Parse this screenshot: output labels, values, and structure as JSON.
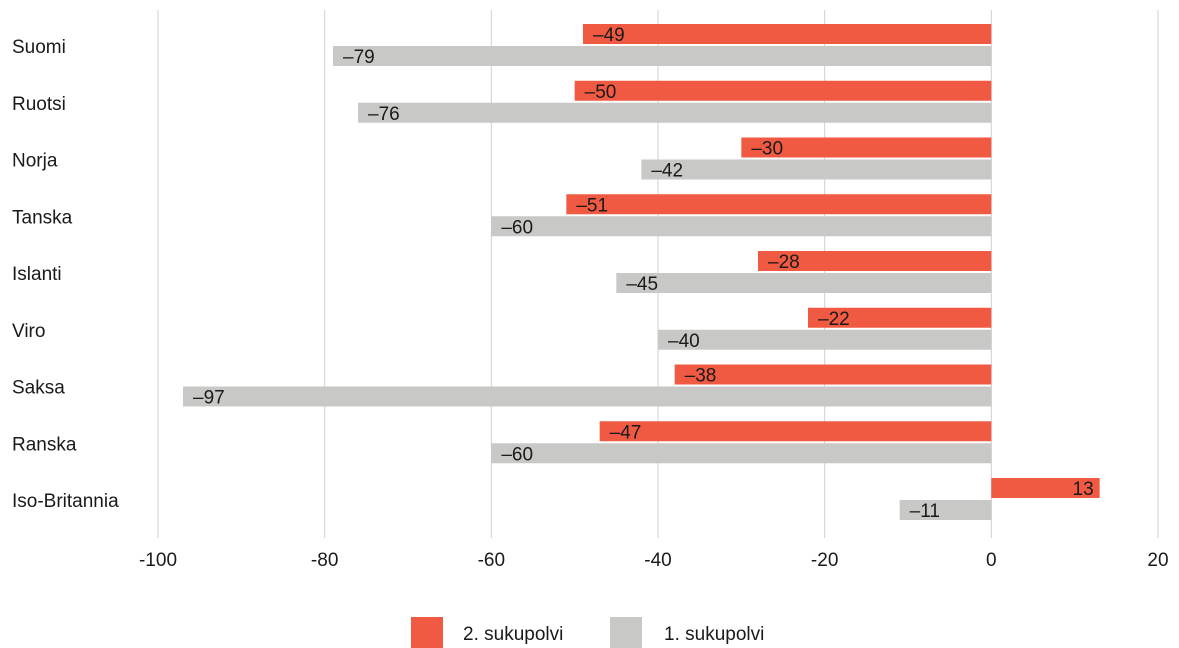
{
  "chart_data": {
    "type": "bar",
    "orientation": "horizontal",
    "categories": [
      "Suomi",
      "Ruotsi",
      "Norja",
      "Tanska",
      "Islanti",
      "Viro",
      "Saksa",
      "Ranska",
      "Iso-Britannia"
    ],
    "series": [
      {
        "name": "2. sukupolvi",
        "color": "#f15a42",
        "values": [
          -49,
          -50,
          -30,
          -51,
          -28,
          -22,
          -38,
          -47,
          13
        ],
        "labels": [
          "–49",
          "–50",
          "–30",
          "–51",
          "–28",
          "–22",
          "–38",
          "–47",
          "13"
        ]
      },
      {
        "name": "1. sukupolvi",
        "color": "#c8c8c6",
        "values": [
          -79,
          -76,
          -42,
          -60,
          -45,
          -40,
          -97,
          -60,
          -11
        ],
        "labels": [
          "–79",
          "–76",
          "–42",
          "–60",
          "–45",
          "–40",
          "–97",
          "–60",
          "–11"
        ]
      }
    ],
    "xlim": [
      -100,
      20
    ],
    "ticks": [
      -100,
      -80,
      -60,
      -40,
      -20,
      0,
      20
    ],
    "tick_labels": [
      "-100",
      "-80",
      "-60",
      "-40",
      "-20",
      "0",
      "20"
    ],
    "grid": true,
    "legend_position": "bottom-center",
    "title": "",
    "xlabel": "",
    "ylabel": ""
  }
}
